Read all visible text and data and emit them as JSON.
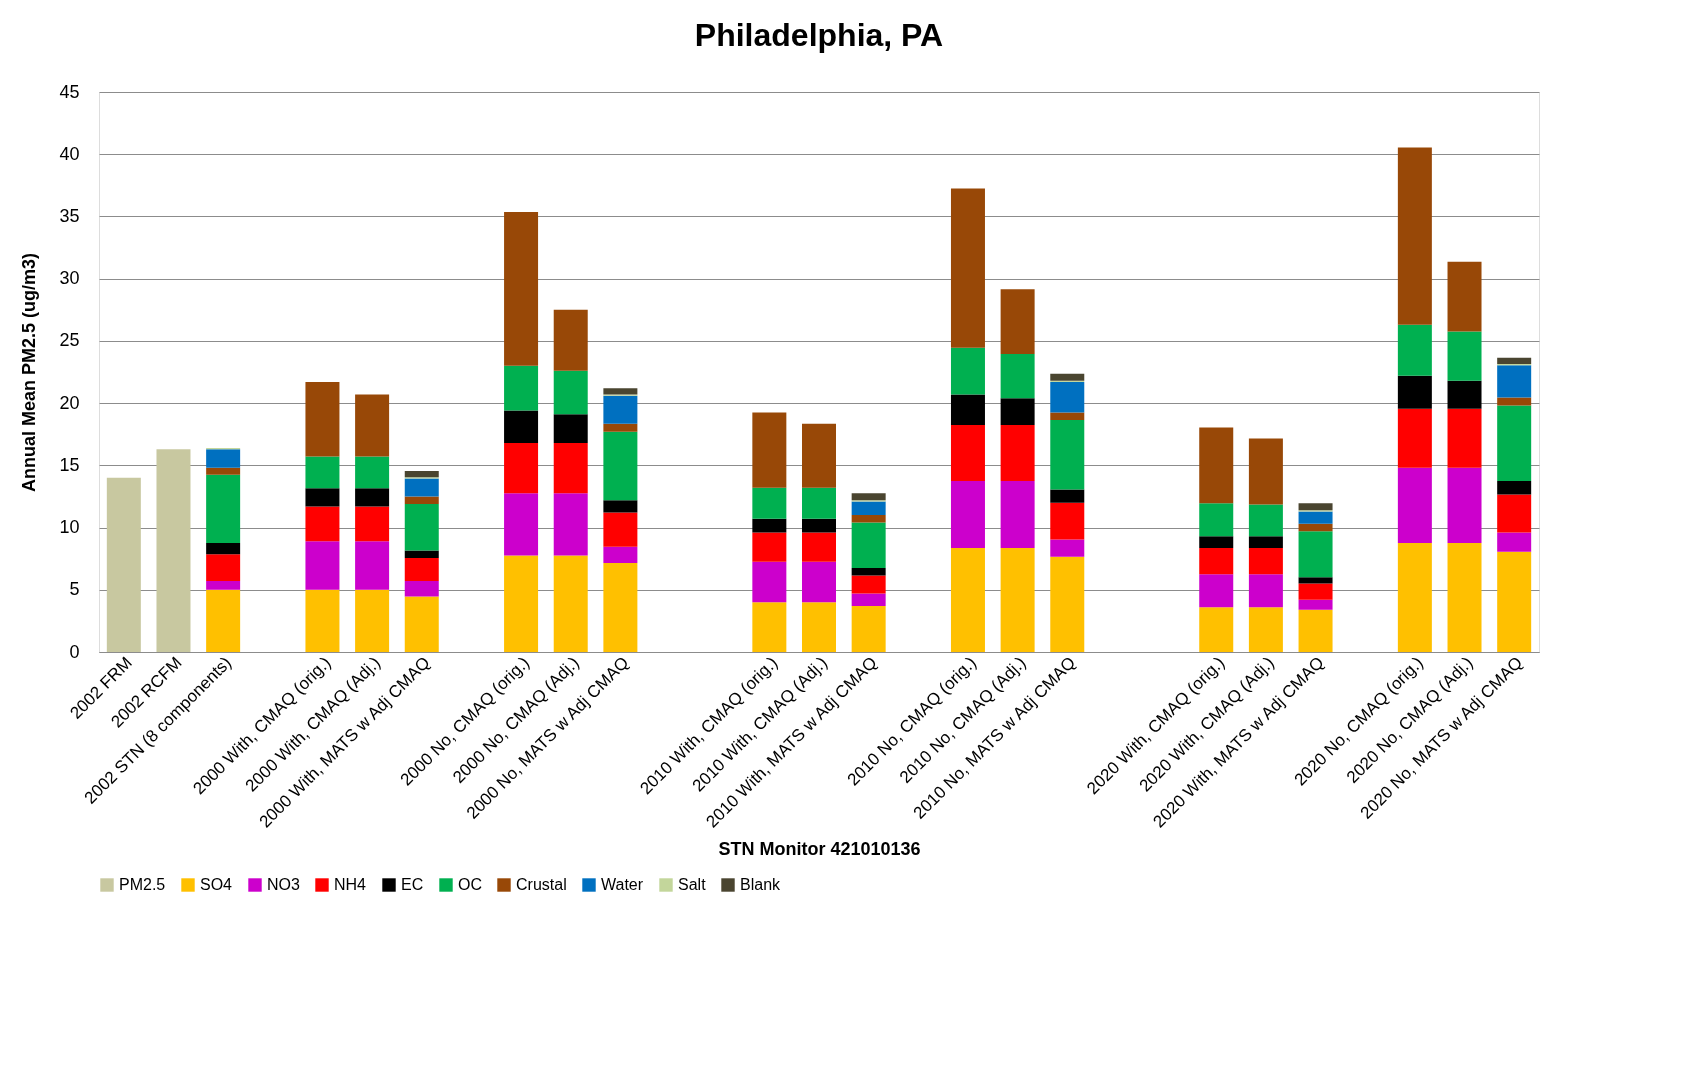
{
  "chart_data": {
    "type": "bar",
    "stacked": true,
    "title": "Philadelphia, PA",
    "xlabel": "STN Monitor 421010136",
    "ylabel": "Annual Mean PM2.5 (ug/m3)",
    "categories": [
      "2002 FRM",
      "2002 RCFM",
      "2002 STN (8 components)",
      null,
      "2000 With, CMAQ (orig.)",
      "2000 With, CMAQ (Adj.)",
      "2000 With, MATS w Adj CMAQ",
      null,
      "2000 No, CMAQ (orig.)",
      "2000 No, CMAQ (Adj.)",
      "2000 No, MATS w Adj CMAQ",
      null,
      null,
      "2010 With, CMAQ (orig.)",
      "2010 With, CMAQ (Adj.)",
      "2010 With, MATS w Adj CMAQ",
      null,
      "2010 No, CMAQ (orig.)",
      "2010 No, CMAQ (Adj.)",
      "2010 No, MATS w Adj CMAQ",
      null,
      null,
      "2020 With, CMAQ (orig.)",
      "2020 With, CMAQ (Adj.)",
      "2020 With, MATS w Adj CMAQ",
      null,
      "2020 No, CMAQ (orig.)",
      "2020 No, CMAQ (Adj.)",
      "2020 No, MATS w Adj CMAQ"
    ],
    "series": [
      {
        "name": "PM2.5",
        "color": "#c8c8a0",
        "values": [
          14.0,
          16.3,
          null,
          null,
          null,
          null,
          null,
          null,
          null,
          null,
          null,
          null,
          null,
          null,
          null,
          null,
          null,
          null,
          null,
          null,
          null,
          null,
          null,
          null,
          null,
          null,
          null,
          null,
          null
        ]
      },
      {
        "name": "SO4",
        "color": "#ffc000",
        "values": [
          null,
          null,
          5.0,
          null,
          5.0,
          5.0,
          4.45,
          null,
          7.75,
          7.75,
          7.15,
          null,
          null,
          4.0,
          4.0,
          3.7,
          null,
          8.35,
          8.35,
          7.65,
          null,
          null,
          3.6,
          3.6,
          3.4,
          null,
          8.75,
          8.75,
          8.05
        ]
      },
      {
        "name": "NO3",
        "color": "#cc00cc",
        "values": [
          null,
          null,
          0.7,
          null,
          3.9,
          3.9,
          1.25,
          null,
          5.0,
          5.0,
          1.3,
          null,
          null,
          3.25,
          3.25,
          1.0,
          null,
          5.4,
          5.4,
          1.4,
          null,
          null,
          2.65,
          2.65,
          0.8,
          null,
          6.05,
          6.05,
          1.55
        ]
      },
      {
        "name": "NH4",
        "color": "#ff0000",
        "values": [
          null,
          null,
          2.15,
          null,
          2.8,
          2.8,
          1.85,
          null,
          4.05,
          4.05,
          2.75,
          null,
          null,
          2.35,
          2.35,
          1.45,
          null,
          4.5,
          4.5,
          2.95,
          null,
          null,
          2.1,
          2.1,
          1.3,
          null,
          4.75,
          4.75,
          3.05
        ]
      },
      {
        "name": "EC",
        "color": "#000000",
        "values": [
          null,
          null,
          0.9,
          null,
          1.45,
          1.45,
          0.6,
          null,
          2.6,
          2.3,
          1.0,
          null,
          null,
          1.1,
          1.1,
          0.6,
          null,
          2.45,
          2.15,
          1.05,
          null,
          null,
          0.95,
          0.95,
          0.5,
          null,
          2.65,
          2.25,
          1.1
        ]
      },
      {
        "name": "OC",
        "color": "#00b050",
        "values": [
          null,
          null,
          5.5,
          null,
          2.55,
          2.55,
          3.75,
          null,
          3.6,
          3.5,
          5.5,
          null,
          null,
          2.5,
          2.5,
          3.65,
          null,
          3.75,
          3.55,
          5.6,
          null,
          null,
          2.65,
          2.55,
          3.7,
          null,
          4.1,
          3.95,
          6.05
        ]
      },
      {
        "name": "Crustal",
        "color": "#984807",
        "values": [
          null,
          null,
          0.55,
          null,
          6.0,
          5.0,
          0.6,
          null,
          12.35,
          4.9,
          0.65,
          null,
          null,
          6.05,
          5.15,
          0.6,
          null,
          12.8,
          5.2,
          0.6,
          null,
          null,
          6.1,
          5.3,
          0.6,
          null,
          14.25,
          5.6,
          0.65
        ]
      },
      {
        "name": "Water",
        "color": "#0070c0",
        "values": [
          null,
          null,
          1.5,
          null,
          null,
          null,
          1.45,
          null,
          null,
          null,
          2.25,
          null,
          null,
          null,
          null,
          1.1,
          null,
          null,
          null,
          2.45,
          null,
          null,
          null,
          null,
          1.0,
          null,
          null,
          null,
          2.6
        ]
      },
      {
        "name": "Salt",
        "color": "#c3d69b",
        "values": [
          null,
          null,
          0.1,
          null,
          null,
          null,
          0.1,
          null,
          null,
          null,
          0.1,
          null,
          null,
          null,
          null,
          0.1,
          null,
          null,
          null,
          0.1,
          null,
          null,
          null,
          null,
          0.1,
          null,
          null,
          null,
          0.1
        ]
      },
      {
        "name": "Blank",
        "color": "#4a4530",
        "values": [
          null,
          null,
          null,
          null,
          null,
          null,
          0.5,
          null,
          null,
          null,
          0.5,
          null,
          null,
          null,
          null,
          0.55,
          null,
          null,
          null,
          0.55,
          null,
          null,
          null,
          null,
          0.55,
          null,
          null,
          null,
          0.5
        ]
      }
    ],
    "ylim": [
      0,
      45
    ],
    "yticks": [
      0,
      5,
      10,
      15,
      20,
      25,
      30,
      35,
      40,
      45
    ],
    "grid": "y",
    "legend": "bottom"
  }
}
